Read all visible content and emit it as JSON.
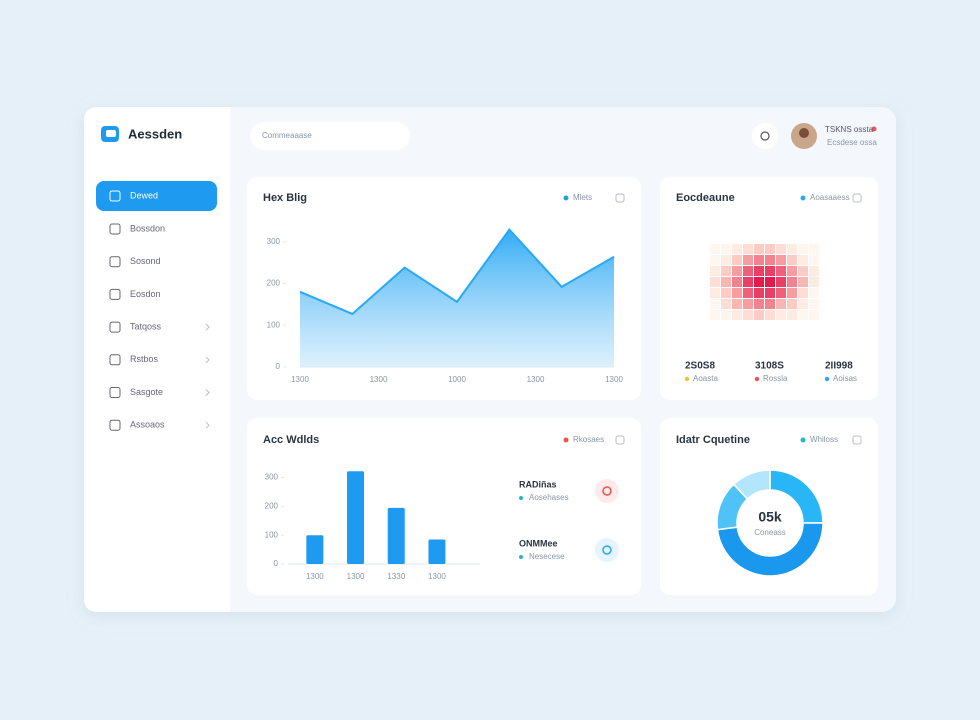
{
  "brand": "Aessden",
  "search_placeholder": "Commeaaase",
  "user": {
    "name": "TSKNS ossta",
    "role": "Ecsdese ossa"
  },
  "nav": [
    "Dewed",
    "Bossdon",
    "Sosond",
    "Eosdon",
    "Tatqoss",
    "Rstbos",
    "Sasgote",
    "Assoaos"
  ],
  "chart_data": [
    {
      "type": "area",
      "title": "Hex Blig",
      "legend": "Mlets",
      "legend_color": "#1fa2dc",
      "color": "#29a8f5",
      "values": [
        180,
        127,
        238,
        156,
        329,
        192,
        264
      ],
      "ylim": [
        0,
        340
      ],
      "yticks": [
        0,
        100,
        200,
        300
      ],
      "xtick_labels": [
        "1300",
        "1300",
        "1000",
        "1300",
        "1300"
      ]
    },
    {
      "type": "heatmap",
      "title": "Eocdeaune",
      "legend": "Aoasaaess",
      "legend_color": "#29a8f5",
      "zlim": [
        0,
        9
      ],
      "values": [
        [
          0,
          0,
          1,
          2,
          3,
          3,
          2,
          1,
          0,
          0
        ],
        [
          0,
          1,
          3,
          5,
          6,
          6,
          5,
          3,
          1,
          0
        ],
        [
          1,
          3,
          5,
          7,
          8,
          8,
          7,
          5,
          3,
          1
        ],
        [
          2,
          4,
          6,
          8,
          9,
          9,
          8,
          6,
          4,
          1
        ],
        [
          1,
          3,
          5,
          7,
          8,
          8,
          7,
          5,
          2,
          0
        ],
        [
          0,
          2,
          4,
          5,
          6,
          6,
          4,
          3,
          1,
          0
        ],
        [
          0,
          0,
          1,
          2,
          3,
          2,
          1,
          1,
          0,
          0
        ]
      ],
      "stats": [
        {
          "value": "2S0S8",
          "label": "Aoasta",
          "color": "#f2c230"
        },
        {
          "value": "3108S",
          "label": "Rossla",
          "color": "#ef5350"
        },
        {
          "value": "2II998",
          "label": "Aoisas",
          "color": "#29a8f5"
        }
      ]
    },
    {
      "type": "bar",
      "title": "Acc Wdlds",
      "legend": "Rkosaes",
      "legend_color": "#ef5350",
      "color": "#1e9af0",
      "categories": [
        "1300",
        "1300",
        "1330",
        "1300"
      ],
      "values": [
        100,
        322,
        195,
        85
      ],
      "ylim": [
        0,
        330
      ],
      "yticks": [
        0,
        100,
        200,
        300
      ],
      "stats": [
        {
          "value": "RADiñas",
          "label": "Aosehases",
          "color": "#ef5350"
        },
        {
          "value": "ONMMee",
          "label": "Nesecese",
          "color": "#29a8f5"
        }
      ]
    },
    {
      "type": "donut",
      "title": "Idatr Cquetine",
      "legend": "Whiloss",
      "legend_color": "#26b5c9",
      "center": "05k",
      "center_label": "Coneass",
      "values": [
        25,
        48,
        15,
        12
      ],
      "colors": [
        "#29b6f6",
        "#1a98ee",
        "#4fc3f7",
        "#b3e5fc"
      ]
    }
  ]
}
